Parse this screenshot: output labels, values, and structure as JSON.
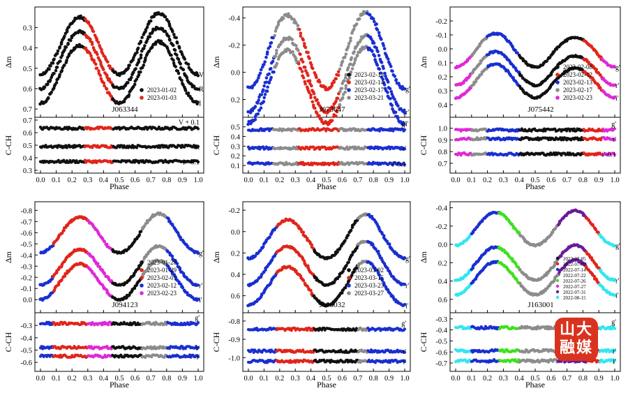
{
  "logo": {
    "line1": "山大",
    "line2": "融媒"
  },
  "colors": {
    "black": "#111111",
    "red": "#e0251b",
    "blue": "#1a2fd0",
    "gray": "#8c8c8c",
    "magenta": "#e028d8",
    "green": "#3ee01e",
    "purple": "#6a1b9a",
    "cyan": "#32e6f0",
    "orange": "#d9331f"
  },
  "chart_data": [
    {
      "type": "scatter",
      "title": "J063344",
      "xlabel": "Phase",
      "upper": {
        "ylabel": "Δm",
        "ylim": [
          0.72,
          0.22
        ],
        "yticks": [
          "0.3",
          "0.4",
          "0.5",
          "0.6",
          "0.7"
        ],
        "band_labels": [
          "V",
          "R",
          "I"
        ],
        "curves": [
          {
            "band": "V",
            "mid": 0.39,
            "amp": 0.14,
            "minDiff": 0.02
          },
          {
            "band": "R",
            "mid": 0.46,
            "amp": 0.14,
            "minDiff": 0.02
          },
          {
            "band": "I",
            "mid": 0.53,
            "amp": 0.14,
            "minDiff": 0.02
          }
        ],
        "legend": [
          {
            "label": "2023-01-02",
            "color": "black"
          },
          {
            "label": "2023-01-03",
            "color": "red"
          }
        ],
        "segments": [
          {
            "from": 0.0,
            "to": 0.28,
            "color": "black"
          },
          {
            "from": 0.28,
            "to": 0.46,
            "color": "red"
          },
          {
            "from": 0.46,
            "to": 1.0,
            "color": "black"
          }
        ]
      },
      "lower": {
        "ylabel": "C-CH",
        "ylim": [
          0.3,
          0.7
        ],
        "yticks": [
          "0.3",
          "0.4",
          "0.5",
          "0.6",
          "0.7"
        ],
        "bands": [
          {
            "label": "V + 0.1",
            "level": 0.635
          },
          {
            "label": "R",
            "level": 0.49
          },
          {
            "label": "I - 0.1",
            "level": 0.37
          }
        ]
      }
    },
    {
      "type": "scatter",
      "title": "J073647",
      "xlabel": "Phase",
      "upper": {
        "ylabel": "Δm",
        "ylim": [
          0.3,
          -0.45
        ],
        "yticks": [
          "-0.4",
          "-0.2",
          "0.0",
          "0.2"
        ],
        "band_labels": [
          "g'",
          "r'",
          "i'"
        ],
        "curves": [
          {
            "band": "g'",
            "mid": -0.15,
            "amp": 0.27,
            "minDiff": 0.02
          },
          {
            "band": "r'",
            "mid": 0.02,
            "amp": 0.27,
            "minDiff": 0.02
          },
          {
            "band": "i'",
            "mid": 0.105,
            "amp": 0.27,
            "minDiff": 0.02
          }
        ],
        "legend": [
          {
            "label": "2023-02-13",
            "color": "black"
          },
          {
            "label": "2023-02-14",
            "color": "red"
          },
          {
            "label": "2023-02-17",
            "color": "blue"
          },
          {
            "label": "2023-03-21",
            "color": "gray"
          }
        ],
        "segments": [
          {
            "from": 0.0,
            "to": 0.16,
            "color": "blue"
          },
          {
            "from": 0.16,
            "to": 0.32,
            "color": "gray"
          },
          {
            "from": 0.32,
            "to": 0.58,
            "color": "red"
          },
          {
            "from": 0.58,
            "to": 0.76,
            "color": "gray"
          },
          {
            "from": 0.76,
            "to": 1.0,
            "color": "blue"
          }
        ]
      },
      "lower": {
        "ylabel": "C-CH",
        "ylim": [
          0.05,
          0.57
        ],
        "yticks": [
          "0.1",
          "0.2",
          "0.3",
          "0.4",
          "0.5"
        ],
        "bands": [
          {
            "label": "g'",
            "level": 0.47
          },
          {
            "label": "r'",
            "level": 0.28
          },
          {
            "label": "i'-0.1",
            "level": 0.12
          }
        ]
      }
    },
    {
      "type": "scatter",
      "title": "J075442",
      "xlabel": "Phase",
      "upper": {
        "ylabel": "Δm",
        "ylim": [
          0.46,
          -0.27
        ],
        "yticks": [
          "-0.2",
          "-0.1",
          "0.0",
          "0.1",
          "0.2",
          "0.3",
          "0.4"
        ],
        "band_labels": [
          "g'",
          "r'",
          "i'"
        ],
        "curves": [
          {
            "band": "g'",
            "mid": 0.01,
            "amp": 0.12,
            "minDiff": -0.03
          },
          {
            "band": "r'",
            "mid": 0.14,
            "amp": 0.12,
            "minDiff": -0.03
          },
          {
            "band": "i'",
            "mid": 0.23,
            "amp": 0.12,
            "minDiff": -0.03
          }
        ],
        "legend": [
          {
            "label": "2023-02-08",
            "color": "black"
          },
          {
            "label": "2023-02-12",
            "color": "red"
          },
          {
            "label": "2023-02-13",
            "color": "blue"
          },
          {
            "label": "2023-02-17",
            "color": "gray"
          },
          {
            "label": "2023-02-23",
            "color": "magenta"
          }
        ],
        "segments": [
          {
            "from": 0.0,
            "to": 0.1,
            "color": "magenta"
          },
          {
            "from": 0.1,
            "to": 0.2,
            "color": "gray"
          },
          {
            "from": 0.2,
            "to": 0.4,
            "color": "blue"
          },
          {
            "from": 0.4,
            "to": 0.8,
            "color": "black"
          },
          {
            "from": 0.8,
            "to": 0.92,
            "color": "red"
          },
          {
            "from": 0.92,
            "to": 1.0,
            "color": "magenta"
          }
        ]
      },
      "lower": {
        "ylabel": "C-CH",
        "ylim": [
          0.64,
          1.07
        ],
        "yticks": [
          "0.7",
          "0.8",
          "0.9",
          "1.0"
        ],
        "bands": [
          {
            "label": "g'",
            "level": 0.985
          },
          {
            "label": "r'",
            "level": 0.91
          },
          {
            "label": "i'-0.1",
            "level": 0.78
          }
        ]
      }
    },
    {
      "type": "scatter",
      "title": "J094123",
      "xlabel": "Phase",
      "upper": {
        "ylabel": "Δm",
        "ylim": [
          0.08,
          -0.84
        ],
        "yticks": [
          "-0.8",
          "-0.7",
          "-0.6",
          "-0.5",
          "-0.4",
          "-0.3",
          "-0.2",
          "-0.1",
          "0.0"
        ],
        "band_labels": [
          "g'",
          "r'",
          "i'"
        ],
        "curves": [
          {
            "band": "g'",
            "mid": -0.58,
            "amp": 0.16,
            "minDiff": 0.03
          },
          {
            "band": "r'",
            "mid": -0.29,
            "amp": 0.16,
            "minDiff": 0.03
          },
          {
            "band": "i'",
            "mid": -0.16,
            "amp": 0.16,
            "minDiff": 0.03
          }
        ],
        "legend": [
          {
            "label": "2023-01-28",
            "color": "black"
          },
          {
            "label": "2023-01-29",
            "color": "red"
          },
          {
            "label": "2023-02-01",
            "color": "red"
          },
          {
            "label": "2023-02-12",
            "color": "blue"
          },
          {
            "label": "2023-02-23",
            "color": "magenta"
          }
        ],
        "segments": [
          {
            "from": 0.0,
            "to": 0.08,
            "color": "blue"
          },
          {
            "from": 0.08,
            "to": 0.3,
            "color": "red"
          },
          {
            "from": 0.3,
            "to": 0.45,
            "color": "magenta"
          },
          {
            "from": 0.45,
            "to": 0.64,
            "color": "black"
          },
          {
            "from": 0.64,
            "to": 0.8,
            "color": "gray"
          },
          {
            "from": 0.8,
            "to": 1.0,
            "color": "blue"
          }
        ]
      },
      "lower": {
        "ylabel": "C-CH",
        "ylim": [
          -0.65,
          -0.22
        ],
        "yticks": [
          "-0.3",
          "-0.4",
          "-0.5",
          "-0.6"
        ],
        "bands": [
          {
            "label": "g'",
            "level": -0.285
          },
          {
            "label": "r'",
            "level": -0.48
          },
          {
            "label": "i'",
            "level": -0.55
          }
        ]
      }
    },
    {
      "type": "scatter",
      "title": "J105032",
      "xlabel": "Phase",
      "upper": {
        "ylabel": "Δm",
        "ylim": [
          0.72,
          -0.24
        ],
        "yticks": [
          "-0.2",
          "0.0",
          "0.2",
          "0.4",
          "0.6"
        ],
        "band_labels": [
          "g'",
          "r'",
          "i'"
        ],
        "curves": [
          {
            "band": "g'",
            "mid": 0.07,
            "amp": 0.18,
            "minDiff": 0.05
          },
          {
            "band": "r'",
            "mid": 0.32,
            "amp": 0.18,
            "minDiff": 0.05
          },
          {
            "band": "i'",
            "mid": 0.51,
            "amp": 0.18,
            "minDiff": 0.05
          }
        ],
        "legend": [
          {
            "label": "2023-03-02",
            "color": "black"
          },
          {
            "label": "2023-03-15",
            "color": "red"
          },
          {
            "label": "2023-03-23",
            "color": "blue"
          },
          {
            "label": "2023-03-27",
            "color": "gray"
          }
        ],
        "segments": [
          {
            "from": 0.0,
            "to": 0.18,
            "color": "blue"
          },
          {
            "from": 0.18,
            "to": 0.42,
            "color": "red"
          },
          {
            "from": 0.42,
            "to": 0.7,
            "color": "black"
          },
          {
            "from": 0.7,
            "to": 0.76,
            "color": "gray"
          },
          {
            "from": 0.76,
            "to": 1.0,
            "color": "blue"
          }
        ]
      },
      "lower": {
        "ylabel": "C-CH",
        "ylim": [
          -1.06,
          -0.77
        ],
        "yticks": [
          "-0.8",
          "-0.9",
          "-1.0"
        ],
        "bands": [
          {
            "label": "g'",
            "level": -0.845
          },
          {
            "label": "r'",
            "level": -0.965
          },
          {
            "label": "i'",
            "level": -1.02
          }
        ]
      }
    },
    {
      "type": "scatter",
      "title": "J163001",
      "xlabel": "Phase",
      "upper": {
        "ylabel": "Δm",
        "ylim": [
          0.7,
          -0.42
        ],
        "yticks": [
          "-0.4",
          "-0.2",
          "0.0",
          "0.2",
          "0.4",
          "0.6"
        ],
        "band_labels": [
          "g'",
          "r'",
          "i'"
        ],
        "curves": [
          {
            "band": "g'",
            "mid": -0.17,
            "amp": 0.18,
            "minDiff": 0.02
          },
          {
            "band": "r'",
            "mid": 0.21,
            "amp": 0.18,
            "minDiff": 0.02
          },
          {
            "band": "i'",
            "mid": 0.37,
            "amp": 0.18,
            "minDiff": 0.02
          }
        ],
        "legend": [
          {
            "label": "2022-07-05",
            "color": "black"
          },
          {
            "label": "2022-07-07",
            "color": "red"
          },
          {
            "label": "2022-07-14",
            "color": "blue"
          },
          {
            "label": "2022-07-22",
            "color": "gray"
          },
          {
            "label": "2022-07-26",
            "color": "green"
          },
          {
            "label": "2022-07-27",
            "color": "magenta"
          },
          {
            "label": "2022-07-31",
            "color": "purple"
          },
          {
            "label": "2022-08-15",
            "color": "cyan"
          }
        ],
        "segments": [
          {
            "from": 0.0,
            "to": 0.1,
            "color": "cyan"
          },
          {
            "from": 0.1,
            "to": 0.27,
            "color": "blue"
          },
          {
            "from": 0.27,
            "to": 0.4,
            "color": "green"
          },
          {
            "from": 0.4,
            "to": 0.64,
            "color": "gray"
          },
          {
            "from": 0.64,
            "to": 0.82,
            "color": "purple"
          },
          {
            "from": 0.82,
            "to": 0.9,
            "color": "red"
          },
          {
            "from": 0.9,
            "to": 1.0,
            "color": "cyan"
          }
        ]
      },
      "lower": {
        "ylabel": "C-CH",
        "ylim": [
          -0.75,
          -0.27
        ],
        "yticks": [
          "-0.3",
          "-0.4",
          "-0.5",
          "-0.6",
          "-0.7"
        ],
        "bands": [
          {
            "label": "g'",
            "level": -0.38
          },
          {
            "label": "r'",
            "level": -0.59
          },
          {
            "label": "i'",
            "level": -0.68
          }
        ]
      }
    }
  ],
  "xticks": [
    "0.0",
    "0.1",
    "0.2",
    "0.3",
    "0.4",
    "0.5",
    "0.6",
    "0.7",
    "0.8",
    "0.9",
    "1.0"
  ]
}
